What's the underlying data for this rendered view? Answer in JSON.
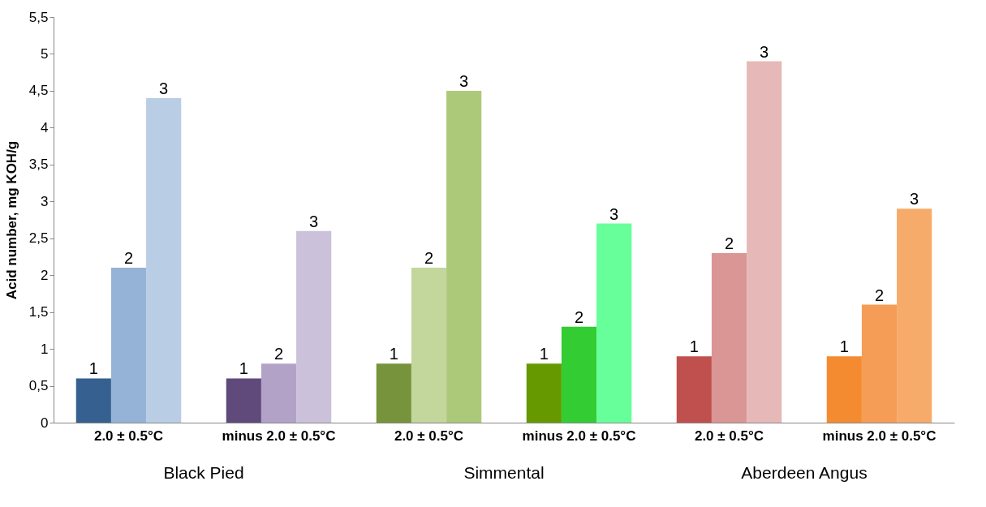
{
  "chart_data": {
    "type": "bar",
    "ylabel": "Acid number, mg KOH/g",
    "categories": [
      "2.0 ± 0.5°C",
      "minus 2.0 ± 0.5°C",
      "2.0 ± 0.5°C",
      "minus 2.0 ± 0.5°C",
      "2.0 ± 0.5°C",
      "minus 2.0 ± 0.5°C"
    ],
    "series": [
      {
        "name": "1",
        "values": [
          0.6,
          0.6,
          0.8,
          0.8,
          0.9,
          0.9
        ],
        "colors": [
          "#35608f",
          "#604a7b",
          "#77933c",
          "#669900",
          "#c0504d",
          "#f58b30"
        ]
      },
      {
        "name": "2",
        "values": [
          2.1,
          0.8,
          2.1,
          1.3,
          2.3,
          1.6
        ],
        "colors": [
          "#95b3d7",
          "#b3a2c7",
          "#c3d69b",
          "#33cc33",
          "#d99694",
          "#f59d56"
        ]
      },
      {
        "name": "3",
        "values": [
          4.4,
          2.6,
          4.5,
          2.7,
          4.9,
          2.9
        ],
        "colors": [
          "#b9cde5",
          "#ccc1da",
          "#acc97a",
          "#66ff99",
          "#e6b9b8",
          "#f7ab6a"
        ]
      }
    ],
    "annotations": [
      "Black Pied",
      "Simmental",
      "Aberdeen Angus"
    ],
    "ylim": [
      0,
      5.5
    ],
    "yticks": [
      0,
      {
        "value": 0.5,
        "label": "0,5"
      },
      1,
      {
        "value": 1.5,
        "label": "1,5"
      },
      2,
      {
        "value": 2.5,
        "label": "2,5"
      },
      3,
      {
        "value": 3.5,
        "label": "3,5"
      },
      4,
      {
        "value": 4.5,
        "label": "4,5"
      },
      5,
      {
        "value": 5.5,
        "label": "5,5"
      }
    ],
    "grid": false
  }
}
